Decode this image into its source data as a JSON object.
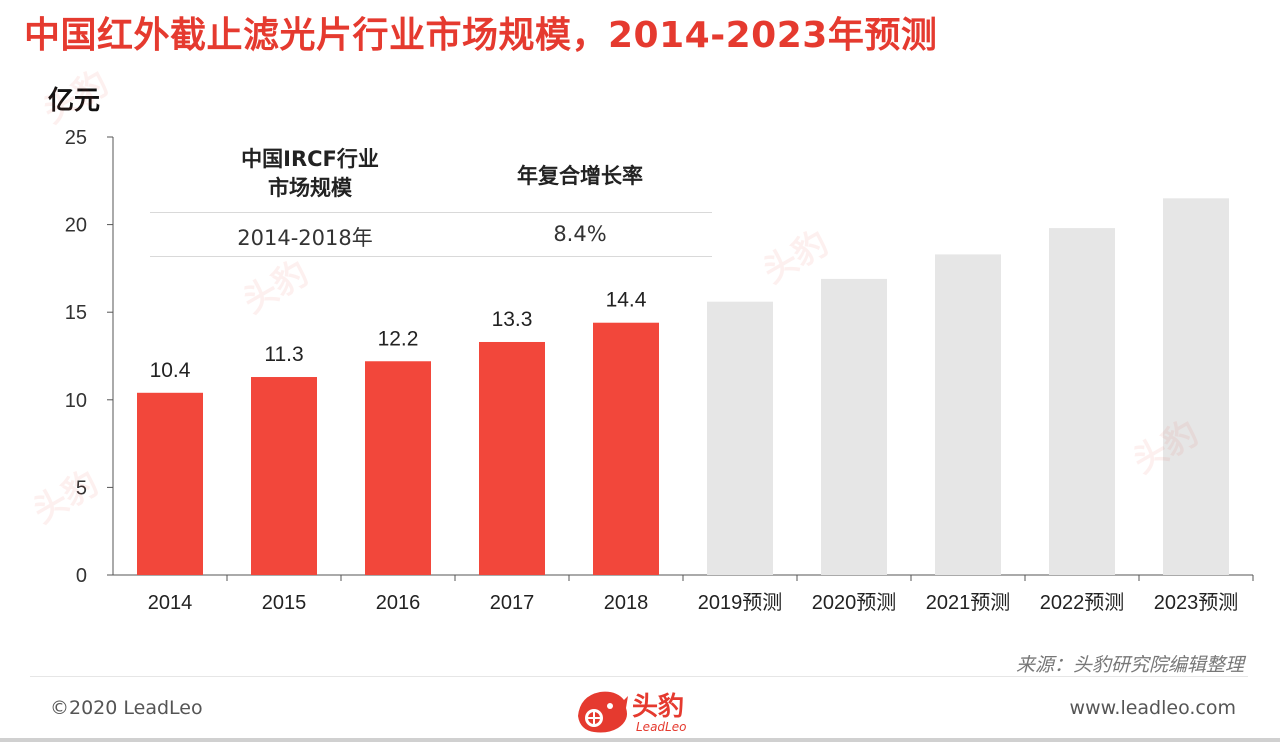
{
  "header": {
    "title": "中国红外截止滤光片行业市场规模，2014-2023年预测",
    "unit": "亿元"
  },
  "cagr_table": {
    "header_col1_line1": "中国IRCF行业",
    "header_col1_line2": "市场规模",
    "header_col2": "年复合增长率",
    "period": "2014-2018年",
    "rate": "8.4%"
  },
  "chart_data": {
    "type": "bar",
    "categories": [
      "2014",
      "2015",
      "2016",
      "2017",
      "2018",
      "2019预测",
      "2020预测",
      "2021预测",
      "2022预测",
      "2023预测"
    ],
    "values": [
      10.4,
      11.3,
      12.2,
      13.3,
      14.4,
      15.6,
      16.9,
      18.3,
      19.8,
      21.5
    ],
    "data_labels": [
      "10.4",
      "11.3",
      "12.2",
      "13.3",
      "14.4",
      "",
      "",
      "",
      "",
      ""
    ],
    "forecast_flags": [
      false,
      false,
      false,
      false,
      false,
      true,
      true,
      true,
      true,
      true
    ],
    "ylim": [
      0,
      25
    ],
    "yticks": [
      0,
      5,
      10,
      15,
      20,
      25
    ],
    "colors": {
      "actual": "#f2473b",
      "forecast": "#e6e6e6"
    },
    "ylabel": "亿元",
    "grid": false
  },
  "footer": {
    "source": "来源：头豹研究院编辑整理",
    "copyright": "©2020 LeadLeo",
    "website": "www.leadleo.com",
    "logo_cn": "头豹",
    "logo_en": "LeadLeo",
    "logo_icon": "leopard-head-icon",
    "watermark": "头豹"
  }
}
